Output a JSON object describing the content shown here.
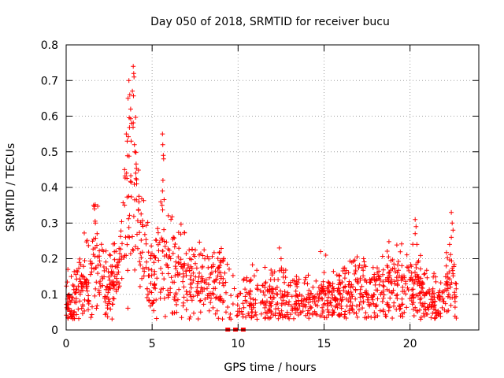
{
  "chart_data": {
    "type": "scatter",
    "title": "Day 050 of 2018, SRMTID for receiver bucu",
    "xlabel": "GPS time / hours",
    "ylabel": "SRMTID / TECUs",
    "xlim": [
      0,
      24
    ],
    "ylim": [
      0,
      0.8
    ],
    "xticks": [
      0,
      5,
      10,
      15,
      20
    ],
    "xtick_labels": [
      "0",
      "5",
      "10",
      "15",
      "20"
    ],
    "yticks": [
      0,
      0.1,
      0.2,
      0.3,
      0.4,
      0.5,
      0.6,
      0.7,
      0.8
    ],
    "ytick_labels": [
      "0",
      "0.1",
      "0.2",
      "0.3",
      "0.4",
      "0.5",
      "0.6",
      "0.7",
      "0.8"
    ],
    "grid": true,
    "marker": "plus",
    "marker_color": "#ff0000",
    "series": [
      {
        "name": "SRMTID",
        "trend": {
          "x": [
            0,
            0.3,
            0.6,
            1.0,
            1.5,
            1.7,
            2.0,
            2.5,
            3.0,
            3.3,
            3.5,
            3.8,
            4.0,
            4.2,
            4.5,
            5.0,
            5.5,
            6.0,
            7.0,
            8.0,
            9.0,
            9.5,
            10.0,
            10.5,
            11.0,
            12.0,
            13.0,
            14.0,
            15.0,
            16.0,
            17.0,
            18.0,
            19.0,
            19.5,
            20.0,
            20.5,
            21.0,
            21.5,
            22.0,
            22.3,
            22.7
          ],
          "y": [
            0.08,
            0.07,
            0.09,
            0.13,
            0.14,
            0.22,
            0.15,
            0.12,
            0.14,
            0.25,
            0.33,
            0.4,
            0.38,
            0.3,
            0.2,
            0.14,
            0.2,
            0.17,
            0.14,
            0.13,
            0.14,
            0.09,
            0.07,
            0.09,
            0.09,
            0.09,
            0.09,
            0.08,
            0.08,
            0.1,
            0.11,
            0.11,
            0.13,
            0.15,
            0.13,
            0.12,
            0.1,
            0.08,
            0.08,
            0.15,
            0.1
          ]
        },
        "spikes": [
          {
            "x": 0.1,
            "y": 0.17
          },
          {
            "x": 0.3,
            "y": 0.15
          },
          {
            "x": 1.6,
            "y": 0.35
          },
          {
            "x": 1.65,
            "y": 0.34
          },
          {
            "x": 1.7,
            "y": 0.3
          },
          {
            "x": 1.8,
            "y": 0.27
          },
          {
            "x": 3.4,
            "y": 0.45
          },
          {
            "x": 3.5,
            "y": 0.55
          },
          {
            "x": 3.55,
            "y": 0.53
          },
          {
            "x": 3.6,
            "y": 0.65
          },
          {
            "x": 3.65,
            "y": 0.7
          },
          {
            "x": 3.7,
            "y": 0.66
          },
          {
            "x": 3.75,
            "y": 0.62
          },
          {
            "x": 3.8,
            "y": 0.58
          },
          {
            "x": 3.85,
            "y": 0.67
          },
          {
            "x": 3.9,
            "y": 0.74
          },
          {
            "x": 3.93,
            "y": 0.72
          },
          {
            "x": 3.95,
            "y": 0.71
          },
          {
            "x": 3.97,
            "y": 0.52
          },
          {
            "x": 4.0,
            "y": 0.5
          },
          {
            "x": 4.05,
            "y": 0.44
          },
          {
            "x": 4.1,
            "y": 0.41
          },
          {
            "x": 5.6,
            "y": 0.55
          },
          {
            "x": 5.62,
            "y": 0.52
          },
          {
            "x": 5.65,
            "y": 0.49
          },
          {
            "x": 5.67,
            "y": 0.48
          },
          {
            "x": 5.63,
            "y": 0.42
          },
          {
            "x": 5.6,
            "y": 0.39
          },
          {
            "x": 5.58,
            "y": 0.35
          },
          {
            "x": 12.4,
            "y": 0.23
          },
          {
            "x": 12.5,
            "y": 0.2
          },
          {
            "x": 14.8,
            "y": 0.22
          },
          {
            "x": 15.1,
            "y": 0.21
          },
          {
            "x": 17.3,
            "y": 0.2
          },
          {
            "x": 20.3,
            "y": 0.31
          },
          {
            "x": 20.35,
            "y": 0.29
          },
          {
            "x": 20.3,
            "y": 0.27
          },
          {
            "x": 20.4,
            "y": 0.24
          },
          {
            "x": 22.4,
            "y": 0.33
          },
          {
            "x": 22.45,
            "y": 0.3
          },
          {
            "x": 22.5,
            "y": 0.28
          },
          {
            "x": 22.4,
            "y": 0.26
          },
          {
            "x": 22.3,
            "y": 0.24
          }
        ],
        "zero_markers": [
          9.4,
          9.85,
          10.3
        ]
      }
    ]
  }
}
